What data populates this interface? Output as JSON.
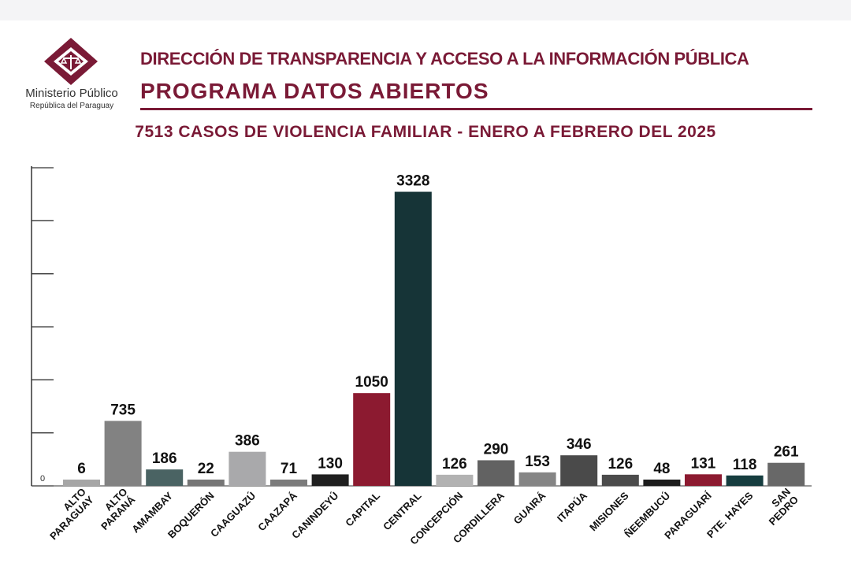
{
  "header": {
    "org_name": "Ministerio Público",
    "org_sub": "República del Paraguay",
    "line1": "DIRECCIÓN DE TRANSPARENCIA Y ACCESO A LA INFORMACIÓN PÚBLICA",
    "line2": "PROGRAMA  DATOS ABIERTOS"
  },
  "colors": {
    "brand": "#7a1a36",
    "axis": "#333333"
  },
  "chart_data": {
    "type": "bar",
    "title": "7513 CASOS DE VIOLENCIA FAMILIAR - ENERO A FEBRERO DEL 2025",
    "xlabel": "",
    "ylabel": "",
    "ylim": [
      0,
      3600
    ],
    "y_ticks": [
      0,
      600,
      1200,
      1800,
      2400,
      3000,
      3600
    ],
    "y_tick_labels": [
      "0"
    ],
    "grid": false,
    "categories": [
      [
        "ALTO",
        "PARAGUAY"
      ],
      [
        "ALTO",
        "PARANÁ"
      ],
      [
        "AMAMBAY"
      ],
      [
        "BOQUERÓN"
      ],
      [
        "CAAGUAZÚ"
      ],
      [
        "CAAZAPÁ"
      ],
      [
        "CANINDEYÚ"
      ],
      [
        "CAPITAL"
      ],
      [
        "CENTRAL"
      ],
      [
        "CONCEPCIÓN"
      ],
      [
        "CORDILLERA"
      ],
      [
        "GUAIRÁ"
      ],
      [
        "ITAPÚA"
      ],
      [
        "MISIONES"
      ],
      [
        "ÑEEMBUCÚ"
      ],
      [
        "PARAGUARÍ"
      ],
      [
        "PTE. HAYES"
      ],
      [
        "SAN",
        "PEDRO"
      ]
    ],
    "values": [
      6,
      735,
      186,
      22,
      386,
      71,
      130,
      1050,
      3328,
      126,
      290,
      153,
      346,
      126,
      48,
      131,
      118,
      261
    ],
    "value_labels": [
      "6",
      "735",
      "186",
      "22",
      "386",
      "71",
      "130",
      "1050",
      "3328",
      "126",
      "290",
      "153",
      "346",
      "126",
      "48",
      "131",
      "118",
      "261"
    ],
    "colors": [
      "#a6a6a6",
      "#828282",
      "#4a6363",
      "#767676",
      "#a9a9ab",
      "#7b7b7b",
      "#1f1f1f",
      "#8c1a30",
      "#163437",
      "#b2b2b2",
      "#626262",
      "#858585",
      "#4a4a4a",
      "#4b4b4b",
      "#1c1c1c",
      "#8c1a30",
      "#163d3f",
      "#686868"
    ]
  }
}
